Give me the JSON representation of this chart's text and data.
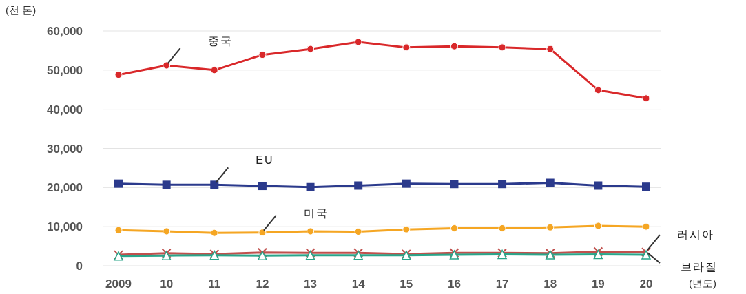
{
  "chart_data": {
    "type": "line",
    "ylabel": "(천 톤)",
    "xlabel": "(년도)",
    "categories": [
      "2009",
      "10",
      "11",
      "12",
      "13",
      "14",
      "15",
      "16",
      "17",
      "18",
      "19",
      "20"
    ],
    "ylim": [
      0,
      60000
    ],
    "yticks": [
      0,
      {
        "value": 10000,
        "label": "10,000"
      },
      {
        "value": 20000,
        "label": "20,000"
      },
      {
        "value": 30000,
        "label": "30,000"
      },
      {
        "value": 40000,
        "label": "40,000"
      },
      {
        "value": 50000,
        "label": "50,000"
      },
      {
        "value": 60000,
        "label": "60,000"
      }
    ],
    "grid": "y",
    "series": [
      {
        "name": "중국",
        "color": "#d9282a",
        "marker": "circle",
        "values": [
          48800,
          51200,
          50000,
          53900,
          55400,
          57200,
          55800,
          56100,
          55800,
          55400,
          44900,
          42800
        ]
      },
      {
        "name": "EU",
        "color": "#2b3a8c",
        "marker": "square",
        "values": [
          21000,
          20700,
          20700,
          20400,
          20100,
          20500,
          21000,
          20900,
          20900,
          21200,
          20500,
          20200
        ]
      },
      {
        "name": "미국",
        "color": "#f5a623",
        "marker": "circle",
        "values": [
          9100,
          8800,
          8400,
          8500,
          8800,
          8700,
          9300,
          9600,
          9600,
          9800,
          10200,
          10000
        ]
      },
      {
        "name": "러시아",
        "color": "#c0504d",
        "marker": "cross",
        "values": [
          2800,
          3200,
          3000,
          3400,
          3300,
          3300,
          3000,
          3300,
          3300,
          3200,
          3600,
          3500
        ]
      },
      {
        "name": "브라질",
        "color": "#2aa58a",
        "marker": "triangle",
        "values": [
          2500,
          2600,
          2700,
          2600,
          2700,
          2700,
          2700,
          2800,
          2900,
          2800,
          2900,
          2800
        ]
      }
    ]
  }
}
